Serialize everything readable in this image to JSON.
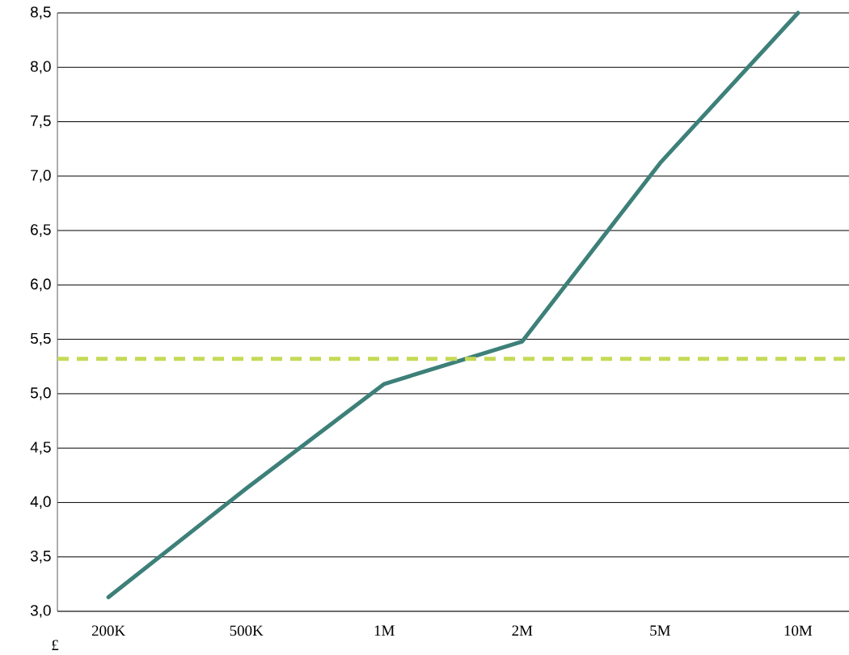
{
  "chart_data": {
    "type": "line",
    "categories": [
      "200K",
      "500K",
      "1M",
      "2M",
      "5M",
      "10M"
    ],
    "series": [
      {
        "color": "#3d8079",
        "values": [
          3.13,
          4.13,
          5.09,
          5.48,
          7.12,
          8.5
        ]
      }
    ],
    "ylim": [
      3.0,
      8.5
    ],
    "yticks": [
      {
        "value": 3.0,
        "label": "3,0"
      },
      {
        "value": 3.5,
        "label": "3,5"
      },
      {
        "value": 4.0,
        "label": "4,0"
      },
      {
        "value": 4.5,
        "label": "4,5"
      },
      {
        "value": 5.0,
        "label": "5,0"
      },
      {
        "value": 5.5,
        "label": "5,5"
      },
      {
        "value": 6.0,
        "label": "6,0"
      },
      {
        "value": 6.5,
        "label": "6,5"
      },
      {
        "value": 7.0,
        "label": "7,0"
      },
      {
        "value": 7.5,
        "label": "7,5"
      },
      {
        "value": 8.0,
        "label": "8,0"
      },
      {
        "value": 8.5,
        "label": "8,5"
      }
    ],
    "grid": "y",
    "ref_lines": [
      {
        "axis": "y",
        "value": 5.32,
        "color": "#c6d957",
        "line_style": "dashed"
      }
    ],
    "annotations": [
      "£"
    ]
  }
}
